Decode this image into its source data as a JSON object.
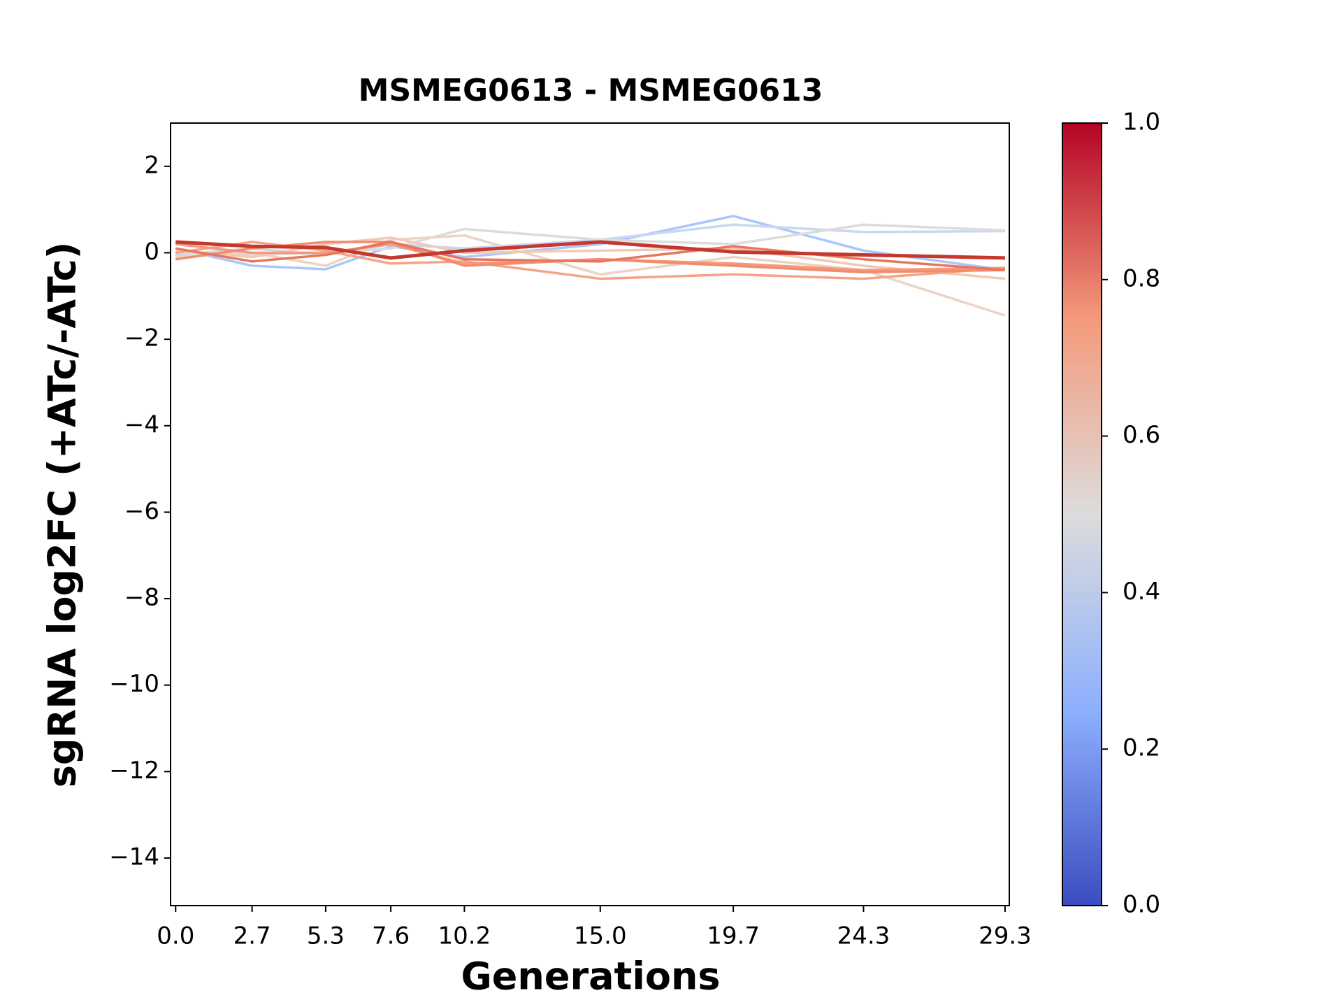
{
  "chart_data": {
    "type": "line",
    "title": "MSMEG0613 - MSMEG0613",
    "xlabel": "Generations",
    "ylabel": "sgRNA log2FC (+ATc/-ATc)",
    "x": [
      0,
      2.7,
      5.3,
      7.6,
      10.2,
      15.0,
      19.7,
      24.3,
      29.3
    ],
    "xlim": [
      -0.18,
      29.45
    ],
    "xticks": [
      {
        "value": 0,
        "label": "0.0"
      },
      2.7,
      5.3,
      7.6,
      10.2,
      {
        "value": 15,
        "label": "15.0"
      },
      19.7,
      24.3,
      29.3
    ],
    "ylim": [
      -15.1,
      3
    ],
    "yticks": [
      {
        "value": -14,
        "label": "−14"
      },
      {
        "value": -12,
        "label": "−12"
      },
      {
        "value": -10,
        "label": "−10"
      },
      {
        "value": -8,
        "label": "−8"
      },
      {
        "value": -6,
        "label": "−6"
      },
      {
        "value": -4,
        "label": "−4"
      },
      {
        "value": -2,
        "label": "−2"
      },
      0,
      2
    ],
    "series": [
      {
        "color": "#aac7fd",
        "values": [
          0.1,
          -0.3,
          -0.38,
          0.15,
          -0.1,
          0.2,
          0.85,
          0.05,
          -0.4
        ]
      },
      {
        "color": "#c9d7f0",
        "values": [
          -0.05,
          0.1,
          -0.05,
          0.2,
          0.1,
          0.3,
          0.65,
          0.48,
          0.5
        ]
      },
      {
        "color": "#dddcdc",
        "values": [
          0.0,
          -0.05,
          0.0,
          0.1,
          0.55,
          0.3,
          0.2,
          0.65,
          0.52
        ]
      },
      {
        "color": "#ecd3c5",
        "values": [
          -0.1,
          0.0,
          -0.3,
          0.3,
          0.4,
          -0.5,
          -0.1,
          -0.4,
          -1.45
        ]
      },
      {
        "color": "#f2c9b4",
        "values": [
          0.05,
          -0.1,
          0.2,
          0.35,
          0.0,
          0.05,
          0.1,
          -0.3,
          -0.6
        ]
      },
      {
        "color": "#f6a385",
        "values": [
          0.0,
          0.25,
          0.05,
          -0.25,
          -0.2,
          -0.6,
          -0.5,
          -0.6,
          -0.35
        ]
      },
      {
        "color": "#f49a7b",
        "values": [
          0.2,
          0.0,
          0.0,
          0.2,
          -0.25,
          -0.15,
          -0.25,
          -0.4,
          -0.35
        ]
      },
      {
        "color": "#f18d6f",
        "values": [
          -0.15,
          0.1,
          0.25,
          0.25,
          -0.3,
          -0.15,
          -0.3,
          -0.45,
          -0.4
        ]
      },
      {
        "color": "#e8765c",
        "values": [
          0.1,
          -0.2,
          -0.05,
          0.25,
          -0.15,
          -0.2,
          0.15,
          -0.15,
          -0.4
        ]
      },
      {
        "color": "#c5382e",
        "values": [
          0.25,
          0.15,
          0.12,
          -0.12,
          0.05,
          0.25,
          0.02,
          -0.05,
          -0.12
        ]
      }
    ],
    "colorbar": {
      "lim": [
        0,
        1
      ],
      "ticks": [
        {
          "value": 0,
          "label": "0.0"
        },
        {
          "value": 0.2,
          "label": "0.2"
        },
        {
          "value": 0.4,
          "label": "0.4"
        },
        {
          "value": 0.6,
          "label": "0.6"
        },
        {
          "value": 0.8,
          "label": "0.8"
        },
        {
          "value": 1,
          "label": "1.0"
        }
      ],
      "colormap": [
        "#3b4cc0",
        "#8db0fe",
        "#dddcdc",
        "#f49a7b",
        "#b40426"
      ]
    }
  }
}
